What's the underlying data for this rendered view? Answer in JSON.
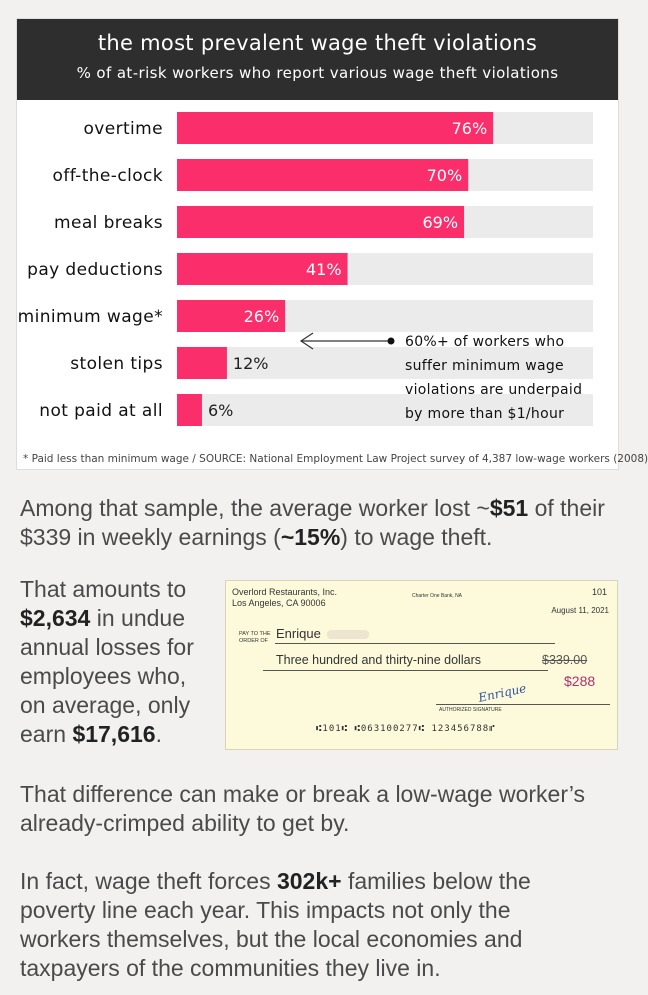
{
  "chart": {
    "title": "the most prevalent wage theft violations",
    "subtitle": "% of at-risk workers who report various wage theft violations",
    "footnote": "* Paid less than minimum wage / SOURCE: National Employment Law Project survey of 4,387 low-wage workers (2008)",
    "annotation_lines": [
      "60%+ of workers who",
      "suffer minimum wage",
      "violations are underpaid",
      "by more than $1/hour"
    ]
  },
  "chart_data": {
    "type": "bar",
    "orientation": "horizontal",
    "title": "the most prevalent wage theft violations",
    "subtitle": "% of at-risk workers who report various wage theft violations",
    "categories": [
      "overtime",
      "off-the-clock",
      "meal breaks",
      "pay deductions",
      "minimum wage*",
      "stolen tips",
      "not paid at all"
    ],
    "values": [
      76,
      70,
      69,
      41,
      26,
      12,
      6
    ],
    "value_labels": [
      "76%",
      "70%",
      "69%",
      "41%",
      "26%",
      "12%",
      "6%"
    ],
    "xlim": [
      0,
      100
    ],
    "grid": false,
    "bar_color": "#fa2e6b",
    "track_color": "#ebebeb"
  },
  "paragraphs": {
    "p1": {
      "a": "Among that sample, the average worker lost ~",
      "b": "$51",
      "c": " of their $339 in weekly earnings (",
      "d": "~15%",
      "e": ") to wage theft."
    },
    "p2": {
      "a": "That amounts to ",
      "b": "$2,634",
      "c": " in undue annual losses for employees who, on average, only earn ",
      "d": "$17,616",
      "e": "."
    },
    "p3": "That difference can make or break a low-wage worker’s already-crimped ability to get by.",
    "p4": {
      "a": "In fact, wage theft forces ",
      "b": "302k+",
      "c": " families below the poverty line each year. This impacts not only the workers themselves, but the local economies and taxpayers of the communities they live in."
    }
  },
  "check": {
    "company": "Overlord Restaurants, Inc.",
    "city": "Los Angeles, CA    90006",
    "bank": "Charter One Bank, NA",
    "number": "101",
    "date": "August 11, 2021",
    "pay_to_label_1": "PAY TO THE",
    "pay_to_label_2": "ORDER OF",
    "payee": "Enrique",
    "amount_words": "Three hundred and thirty-nine dollars",
    "amount_original": "$339.00",
    "amount_actual": "$288",
    "signature": "Enrique",
    "signature_label": "AUTHORIZED SIGNATURE",
    "micr": "⑆101⑆ ⑆063100277⑆ 123456788⑈"
  },
  "colors": {
    "accent": "#fa2e6b",
    "header_bg": "#2e2e2e",
    "amount_actual": "#b0306a"
  }
}
